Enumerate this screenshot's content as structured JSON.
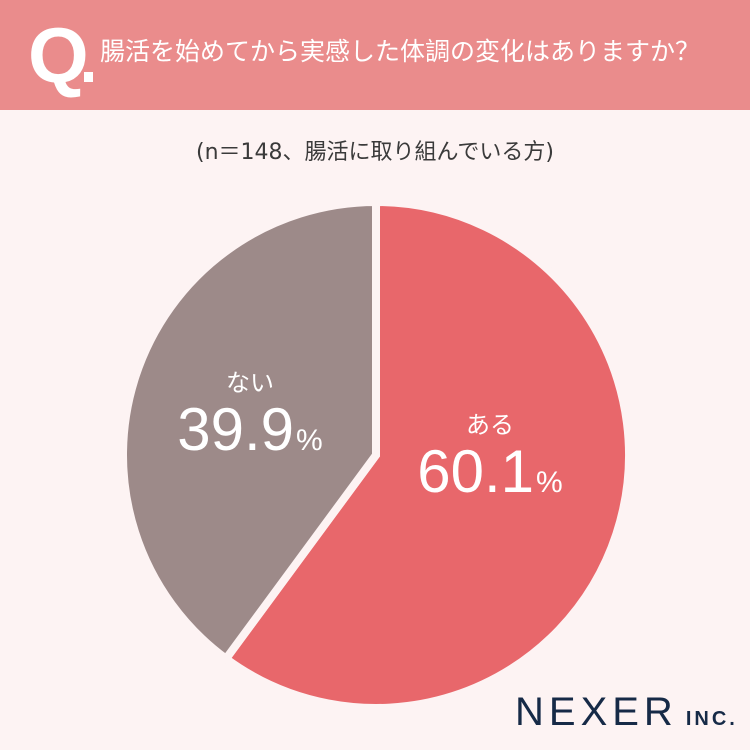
{
  "header": {
    "q_mark": "Q",
    "question": "腸活を始めてから実感した体調の変化はありますか？"
  },
  "subtitle": "(n＝148、腸活に取り組んでいる方)",
  "colors": {
    "header_bg": "#ea8c8c",
    "page_bg": "#fdf3f3",
    "slice_aru": "#e8676b",
    "slice_nai": "#9d8a89",
    "logo": "#162a47"
  },
  "labels": {
    "aru": {
      "name": "ある",
      "value": "60.1",
      "unit": "%"
    },
    "nai": {
      "name": "ない",
      "value": "39.9",
      "unit": "%"
    }
  },
  "logo": {
    "brand": "NEXER",
    "suffix": "INC."
  },
  "chart_data": {
    "type": "pie",
    "title": "腸活を始めてから実感した体調の変化はありますか？",
    "subtitle": "(n＝148、腸活に取り組んでいる方)",
    "categories": [
      "ある",
      "ない"
    ],
    "values": [
      60.1,
      39.9
    ],
    "unit": "%",
    "colors": [
      "#e8676b",
      "#9d8a89"
    ],
    "start_angle": "12 o'clock, clockwise",
    "legend": "none (labels inside slices)"
  }
}
